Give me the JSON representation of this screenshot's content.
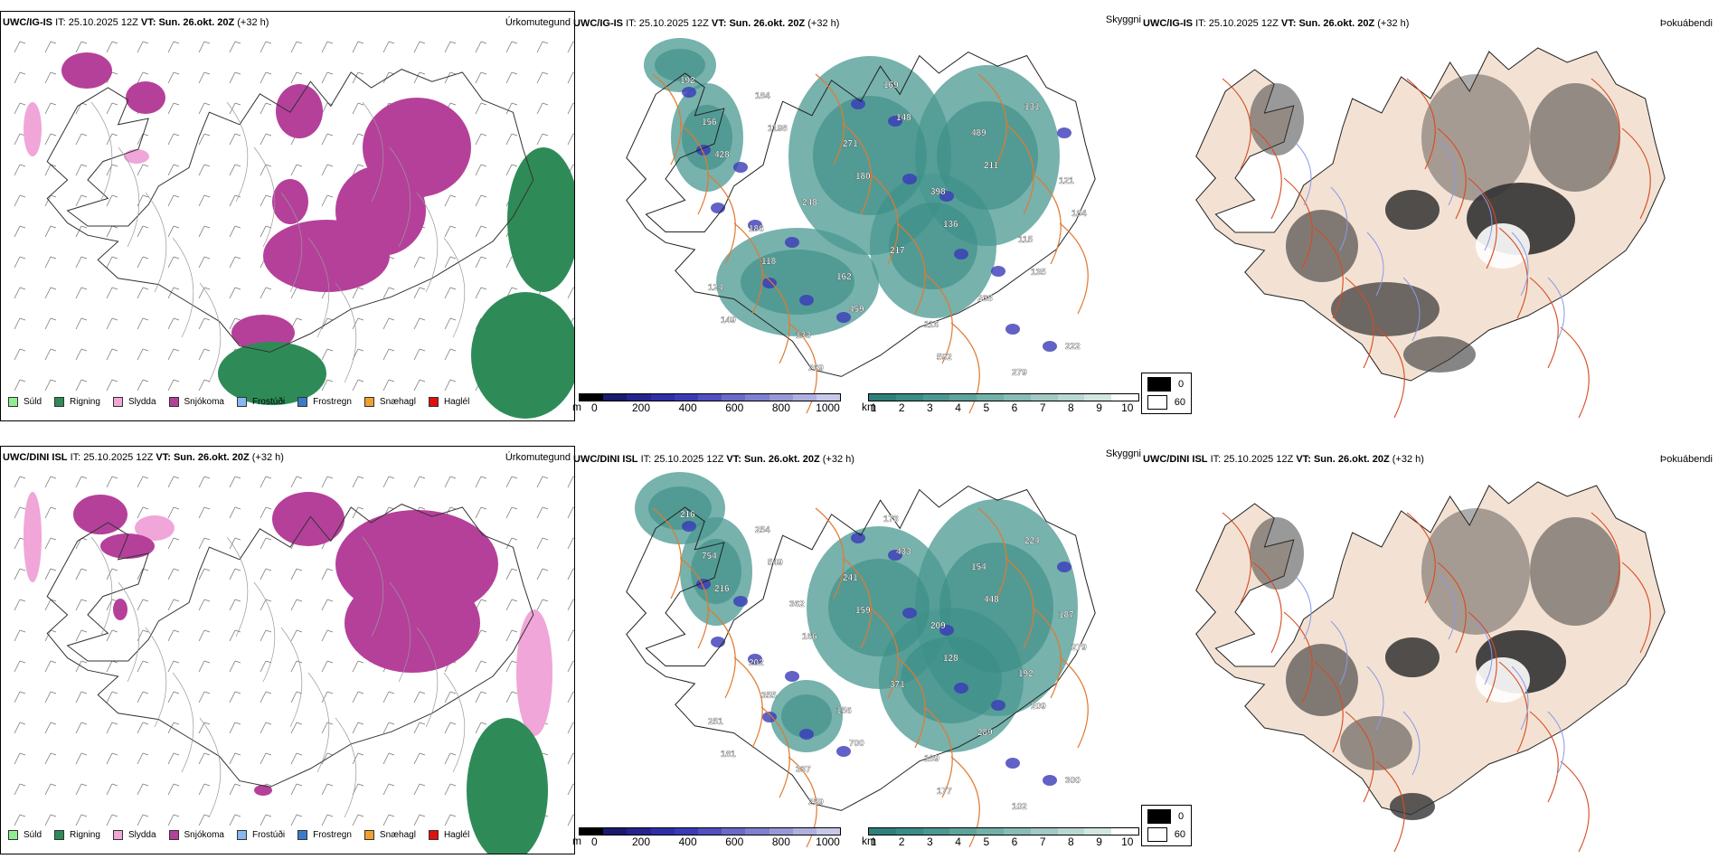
{
  "rows": [
    {
      "model": "UWC/IG-IS",
      "it_label": "IT:",
      "it_value": "25.10.2025 12Z",
      "vt_label": "VT:",
      "vt_value": "Sun. 26.okt. 20Z",
      "lead": "(+32 h)"
    },
    {
      "model": "UWC/DINI ISL",
      "it_label": "IT:",
      "it_value": "25.10.2025 12Z",
      "vt_label": "VT:",
      "vt_value": "Sun. 26.okt. 20Z",
      "lead": "(+32 h)"
    }
  ],
  "panel_titles": {
    "precip_type": "Úrkomutegund",
    "cloud_base": "Skyggni",
    "cloud_cover": "Þokuábendi"
  },
  "precip_legend": [
    {
      "label": "Súld",
      "color": "#90ee90"
    },
    {
      "label": "Rigning",
      "color": "#2e8b57"
    },
    {
      "label": "Slydda",
      "color": "#f0a6d8"
    },
    {
      "label": "Snjókoma",
      "color": "#b5409a"
    },
    {
      "label": "Frostúði",
      "color": "#87b8f0"
    },
    {
      "label": "Frostregn",
      "color": "#3a7cc8"
    },
    {
      "label": "Snæhagl",
      "color": "#f0a030"
    },
    {
      "label": "Haglél",
      "color": "#e01010"
    }
  ],
  "cbar_m": {
    "unit": "m",
    "ticks": [
      "0",
      "200",
      "400",
      "600",
      "800",
      "1000"
    ],
    "colors": [
      "#000000",
      "#1a1a6e",
      "#24248e",
      "#2e2ea8",
      "#3a3ab8",
      "#5050c0",
      "#6a6ac8",
      "#8080d0",
      "#9898d8",
      "#b0b0e0",
      "#c8c8ea"
    ]
  },
  "cbar_km": {
    "unit": "km",
    "ticks": [
      "1",
      "2",
      "3",
      "4",
      "5",
      "6",
      "7",
      "8",
      "9",
      "10"
    ],
    "colors": [
      "#2e7f7a",
      "#3a8c86",
      "#4a9891",
      "#5da49c",
      "#72b0a8",
      "#88bdb5",
      "#a0cac3",
      "#b8d8d2",
      "#d2e6e2",
      "#ffffff"
    ]
  },
  "cloud_legend": [
    {
      "label": "0",
      "color": "#000000"
    },
    {
      "label": "60",
      "color": "#ffffff"
    }
  ],
  "labels_row1": [
    "192",
    "1198",
    "180",
    "136",
    "135",
    "149",
    "269",
    "148",
    "211",
    "184",
    "118",
    "459",
    "592",
    "131",
    "428",
    "248",
    "217",
    "268",
    "222",
    "184",
    "271",
    "398",
    "115",
    "124",
    "133",
    "169",
    "489",
    "121",
    "186",
    "162",
    "116",
    "279",
    "156"
  ],
  "labels_row2": [
    "216",
    "549",
    "159",
    "128",
    "209",
    "181",
    "259",
    "433",
    "448",
    "279",
    "355",
    "700",
    "177",
    "224",
    "216",
    "166",
    "371",
    "289",
    "300",
    "254",
    "241",
    "209",
    "192",
    "251",
    "337",
    "173",
    "154",
    "187",
    "202",
    "156",
    "189",
    "102",
    "754",
    "362"
  ],
  "colors": {
    "snow": "#b5409a",
    "rain": "#2e8b57",
    "sleet": "#f0a6d8",
    "teal": "#4a9891",
    "roads": "#e07a30",
    "terrain": "#f3e2d3"
  }
}
